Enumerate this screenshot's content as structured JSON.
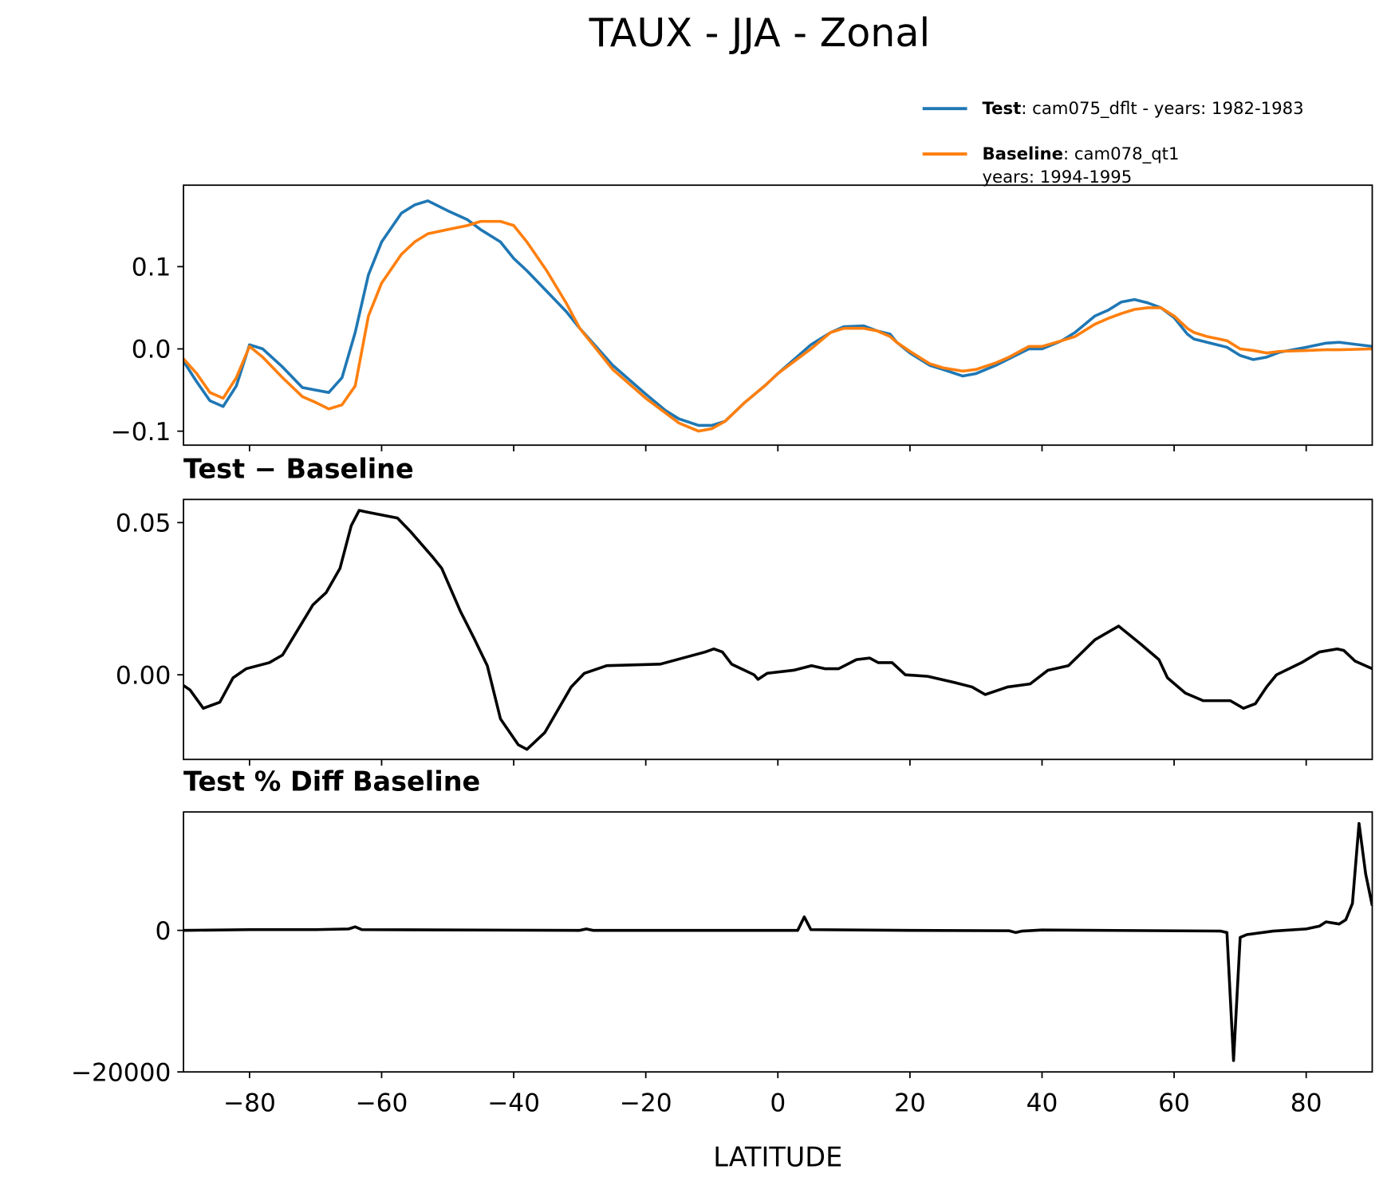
{
  "title": "TAUX - JJA - Zonal",
  "chart_data": [
    {
      "type": "line",
      "x": [
        -90,
        -88,
        -86,
        -84,
        -82,
        -80,
        -78,
        -75,
        -72,
        -70,
        -68,
        -66,
        -64,
        -62,
        -60,
        -57,
        -55,
        -53,
        -50,
        -47,
        -45,
        -42,
        -40,
        -38,
        -35,
        -32,
        -30,
        -25,
        -20,
        -17,
        -15,
        -12,
        -10,
        -8,
        -5,
        -2,
        0,
        5,
        8,
        10,
        13,
        15,
        17,
        18,
        20,
        23,
        25,
        28,
        30,
        33,
        35,
        38,
        40,
        43,
        45,
        48,
        50,
        52,
        54,
        56,
        58,
        60,
        62,
        63,
        65,
        68,
        70,
        72,
        74,
        76,
        80,
        83,
        85,
        90
      ],
      "series": [
        {
          "name": "Test",
          "info": [
            ": cam075_dflt - years: 1982-1983"
          ],
          "color": "#1f77b4",
          "values": [
            -0.015,
            -0.04,
            -0.063,
            -0.07,
            -0.045,
            0.005,
            0.0,
            -0.022,
            -0.047,
            -0.05,
            -0.053,
            -0.035,
            0.02,
            0.09,
            0.13,
            0.165,
            0.175,
            0.18,
            0.168,
            0.157,
            0.145,
            0.13,
            0.11,
            0.095,
            0.07,
            0.045,
            0.025,
            -0.02,
            -0.055,
            -0.075,
            -0.085,
            -0.093,
            -0.093,
            -0.088,
            -0.065,
            -0.045,
            -0.03,
            0.005,
            0.02,
            0.027,
            0.028,
            0.022,
            0.018,
            0.008,
            -0.005,
            -0.02,
            -0.025,
            -0.033,
            -0.03,
            -0.02,
            -0.012,
            0.0,
            0.0,
            0.01,
            0.02,
            0.04,
            0.047,
            0.057,
            0.06,
            0.056,
            0.05,
            0.038,
            0.018,
            0.012,
            0.008,
            0.002,
            -0.008,
            -0.013,
            -0.01,
            -0.004,
            0.002,
            0.007,
            0.008,
            0.003
          ]
        },
        {
          "name": "Baseline",
          "info": [
            ": cam078_qt1",
            "years: 1994-1995"
          ],
          "color": "#ff7f0e",
          "values": [
            -0.012,
            -0.03,
            -0.053,
            -0.06,
            -0.035,
            0.003,
            -0.01,
            -0.035,
            -0.058,
            -0.065,
            -0.073,
            -0.068,
            -0.045,
            0.04,
            0.08,
            0.115,
            0.13,
            0.14,
            0.145,
            0.15,
            0.155,
            0.155,
            0.15,
            0.13,
            0.095,
            0.055,
            0.025,
            -0.025,
            -0.06,
            -0.078,
            -0.09,
            -0.1,
            -0.097,
            -0.088,
            -0.065,
            -0.045,
            -0.03,
            0.0,
            0.02,
            0.025,
            0.025,
            0.022,
            0.015,
            0.008,
            -0.003,
            -0.018,
            -0.023,
            -0.027,
            -0.025,
            -0.017,
            -0.01,
            0.003,
            0.003,
            0.01,
            0.015,
            0.03,
            0.037,
            0.043,
            0.048,
            0.05,
            0.05,
            0.04,
            0.025,
            0.02,
            0.015,
            0.01,
            0.0,
            -0.002,
            -0.005,
            -0.003,
            -0.002,
            -0.001,
            -0.001,
            0.0
          ]
        }
      ],
      "xlim": [
        -90,
        90
      ],
      "xticks": [
        -80,
        -60,
        -40,
        -20,
        0,
        20,
        40,
        60,
        80
      ],
      "xtick_labels": false,
      "ylim": [
        -0.117,
        0.199
      ],
      "yticks": [
        {
          "value": -0.1,
          "label": "−0.1"
        },
        {
          "value": 0,
          "label": "0.0"
        },
        0.1
      ]
    },
    {
      "type": "line",
      "title": "Test − Baseline",
      "x": [
        -90,
        -89,
        -87,
        -84.5,
        -82.5,
        -80.5,
        -77,
        -75,
        -70.4,
        -68.4,
        -66.3,
        -64.6,
        -63.4,
        -62.3,
        -57.6,
        -55.6,
        -52.2,
        -50.9,
        -48.1,
        -46,
        -44,
        -42,
        -39.3,
        -38,
        -35.3,
        -31.3,
        -29.3,
        -25.9,
        -17.8,
        -11,
        -9.7,
        -8.4,
        -7,
        -3.6,
        -3,
        -1.6,
        2.4,
        5.1,
        7.1,
        9.2,
        11.9,
        13.9,
        15.2,
        17.3,
        19.3,
        22.7,
        26.7,
        29.4,
        31.4,
        34.8,
        38.2,
        40.9,
        44,
        48,
        51.6,
        55,
        57.7,
        59,
        61.7,
        64.4,
        68.5,
        70.5,
        72.3,
        74,
        75.5,
        79.3,
        82,
        84.7,
        85.7,
        87.4,
        90
      ],
      "series": [
        {
          "name": "Test − Baseline",
          "color": "#000000",
          "values": [
            -0.0035,
            -0.005,
            -0.011,
            -0.009,
            -0.001,
            0.002,
            0.004,
            0.0065,
            0.023,
            0.027,
            0.035,
            0.049,
            0.054,
            0.0535,
            0.0515,
            0.047,
            0.0385,
            0.035,
            0.021,
            0.012,
            0.003,
            -0.0145,
            -0.023,
            -0.0245,
            -0.019,
            -0.004,
            0.0005,
            0.003,
            0.0035,
            0.0075,
            0.0085,
            0.0075,
            0.0035,
            0.0,
            -0.0015,
            0.0005,
            0.0015,
            0.003,
            0.002,
            0.002,
            0.005,
            0.0055,
            0.004,
            0.004,
            0.0,
            -0.0005,
            -0.0025,
            -0.004,
            -0.0065,
            -0.004,
            -0.003,
            0.0015,
            0.003,
            0.0115,
            0.016,
            0.01,
            0.005,
            -0.001,
            -0.006,
            -0.0085,
            -0.0085,
            -0.011,
            -0.0095,
            -0.004,
            0.0,
            0.004,
            0.0075,
            0.0085,
            0.008,
            0.0045,
            0.002
          ]
        }
      ],
      "xlim": [
        -90,
        90
      ],
      "xticks": [
        -80,
        -60,
        -40,
        -20,
        0,
        20,
        40,
        60,
        80
      ],
      "xtick_labels": false,
      "ylim": [
        -0.0278,
        0.0576
      ],
      "yticks": [
        {
          "value": 0,
          "label": "0.00"
        },
        0.05
      ]
    },
    {
      "type": "line",
      "title": "Test % Diff Baseline",
      "xlabel": "LATITUDE",
      "x": [
        -90,
        -80,
        -70,
        -65,
        -64,
        -63,
        -30,
        -29,
        -28,
        3,
        4,
        5,
        20,
        35,
        36,
        37,
        40,
        67,
        68,
        69,
        70,
        71,
        75,
        80,
        82,
        83,
        85,
        86,
        87,
        88,
        89,
        90
      ],
      "series": [
        {
          "name": "Test % Diff Baseline",
          "color": "#000000",
          "values": [
            0,
            100,
            100,
            200,
            500,
            100,
            0,
            200,
            0,
            0,
            1900,
            100,
            0,
            -50,
            -300,
            -100,
            50,
            -100,
            -300,
            -18400,
            -1000,
            -600,
            -100,
            200,
            600,
            1200,
            900,
            1500,
            3800,
            15100,
            8000,
            3500
          ]
        }
      ],
      "xlim": [
        -90,
        90
      ],
      "xticks": [
        {
          "value": -80,
          "label": "−80"
        },
        {
          "value": -60,
          "label": "−60"
        },
        {
          "value": -40,
          "label": "−40"
        },
        {
          "value": -20,
          "label": "−20"
        },
        0,
        20,
        40,
        60,
        80
      ],
      "xtick_labels": true,
      "ylim": [
        -20000,
        16730
      ],
      "yticks": [
        {
          "value": -20000,
          "label": "−20000"
        },
        0
      ]
    }
  ]
}
